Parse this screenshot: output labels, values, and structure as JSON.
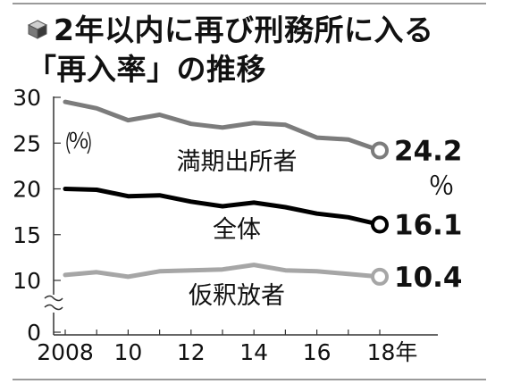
{
  "title": {
    "line1": "2年以内に再び刑務所に入る",
    "line2": "「再入率」の推移"
  },
  "icon": "cube-icon",
  "colors": {
    "series_full_term": "#7c7c7c",
    "series_total": "#000000",
    "series_parolee": "#a6a6a6",
    "frame": "#9a9a9a",
    "axis": "#333333",
    "text": "#111111"
  },
  "chart_data": {
    "type": "line",
    "x": [
      2008,
      2009,
      2010,
      2011,
      2012,
      2013,
      2014,
      2015,
      2016,
      2017,
      2018
    ],
    "x_tick_labels": [
      "2008",
      "10",
      "12",
      "14",
      "16",
      "18年"
    ],
    "x_tick_values": [
      2008,
      2010,
      2012,
      2014,
      2016,
      2018
    ],
    "y_tick_labels": [
      "0",
      "10",
      "15",
      "20",
      "25",
      "30"
    ],
    "y_tick_values": [
      0,
      10,
      15,
      20,
      25,
      30
    ],
    "ylim": [
      0,
      30
    ],
    "y_axis_break": true,
    "y_unit": "％",
    "value_unit": "％",
    "grid": false,
    "legend": "inline",
    "series": [
      {
        "name": "満期出所者",
        "values": [
          29.5,
          28.8,
          27.5,
          28.1,
          27.1,
          26.7,
          27.2,
          27.0,
          25.6,
          25.4,
          24.2
        ],
        "end_label": "24.2"
      },
      {
        "name": "全体",
        "values": [
          20.0,
          19.9,
          19.2,
          19.3,
          18.6,
          18.1,
          18.5,
          18.0,
          17.3,
          16.9,
          16.1
        ],
        "end_label": "16.1"
      },
      {
        "name": "仮釈放者",
        "values": [
          10.6,
          10.9,
          10.4,
          11.0,
          11.1,
          11.2,
          11.7,
          11.1,
          11.0,
          10.7,
          10.4
        ],
        "end_label": "10.4"
      }
    ]
  }
}
